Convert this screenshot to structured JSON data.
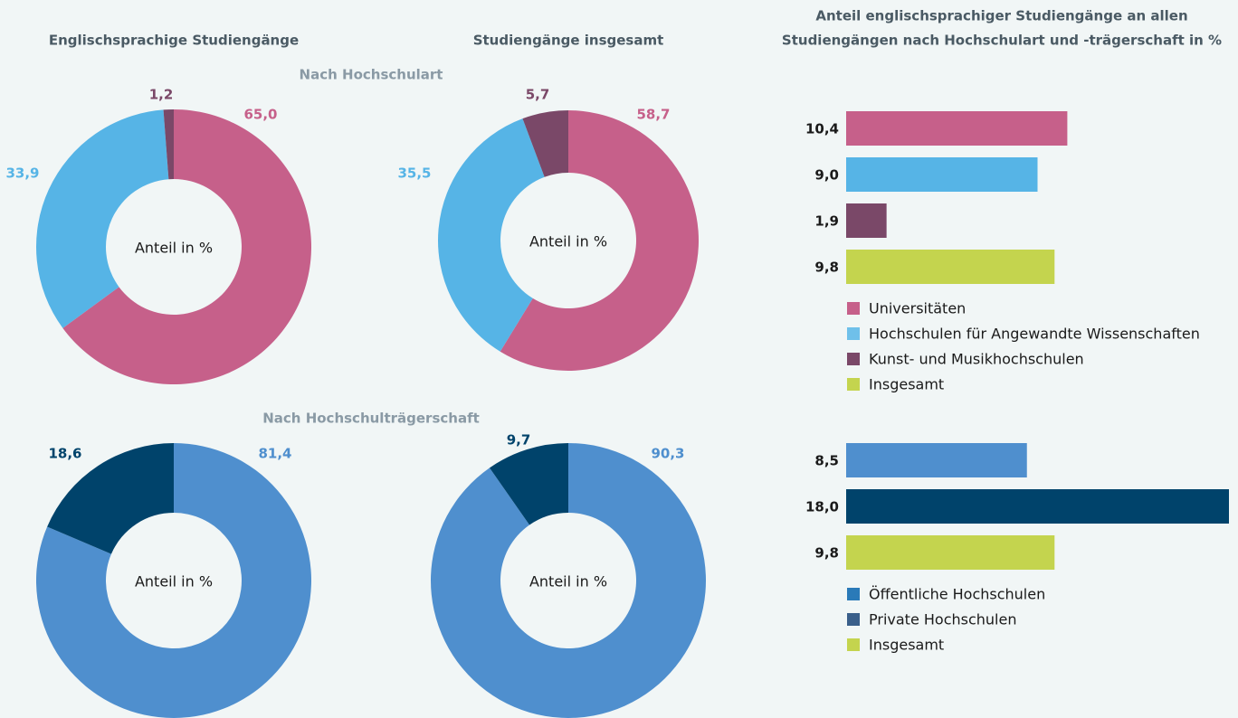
{
  "headings": {
    "left": "Englischsprachige Studiengänge",
    "middle": "Studiengänge insgesamt",
    "right": [
      "Anteil englischsprachiger Studiengänge an allen",
      "Studiengängen nach Hochschulart und -trägerschaft in %"
    ]
  },
  "sections": [
    "Nach Hochschulart",
    "Nach Hochschulträgerschaft"
  ],
  "chart_data": [
    {
      "type": "pie",
      "center_label": "Anteil in %",
      "values": [
        65.0,
        33.9,
        1.2
      ],
      "value_labels": [
        "65,0",
        "33,9",
        "1,2"
      ],
      "colors": [
        "#c6608a",
        "#56b4e6",
        "#7a4868"
      ]
    },
    {
      "type": "pie",
      "center_label": "Anteil in %",
      "values": [
        58.7,
        35.5,
        5.7
      ],
      "value_labels": [
        "58,7",
        "35,5",
        "5,7"
      ],
      "colors": [
        "#c6608a",
        "#56b4e6",
        "#7a4868"
      ]
    },
    {
      "type": "pie",
      "center_label": "Anteil in %",
      "values": [
        81.4,
        18.6
      ],
      "value_labels": [
        "81,4",
        "18,6"
      ],
      "colors": [
        "#4f8fce",
        "#00436b"
      ]
    },
    {
      "type": "pie",
      "center_label": "Anteil in %",
      "values": [
        90.3,
        9.7
      ],
      "value_labels": [
        "90,3",
        "9,7"
      ],
      "colors": [
        "#4f8fce",
        "#00436b"
      ]
    },
    {
      "type": "hbar",
      "categories": [
        "Universitäten",
        "Hochschulen für Angewandte Wissenschaften",
        "Kunst- und Musikhochschulen",
        "Insgesamt"
      ],
      "values": [
        10.4,
        9.0,
        1.9,
        9.8
      ],
      "value_labels": [
        "10,4",
        "9,0",
        "1,9",
        "9,8"
      ],
      "colors": [
        "#c6608a",
        "#56b4e6",
        "#7a4868",
        "#c4d44e"
      ],
      "legend_colors": [
        "#c6608a",
        "#6fc0ea",
        "#7a4868",
        "#c4d44e"
      ],
      "xlim": [
        0,
        18
      ]
    },
    {
      "type": "hbar",
      "categories": [
        "Öffentliche Hochschulen",
        "Private Hochschulen",
        "Insgesamt"
      ],
      "values": [
        8.5,
        18.0,
        9.8
      ],
      "value_labels": [
        "8,5",
        "18,0",
        "9,8"
      ],
      "colors": [
        "#4f8fce",
        "#00436b",
        "#c4d44e"
      ],
      "legend_colors": [
        "#2a7ab8",
        "#3a5f8a",
        "#c4d44e"
      ],
      "xlim": [
        0,
        18
      ]
    }
  ]
}
